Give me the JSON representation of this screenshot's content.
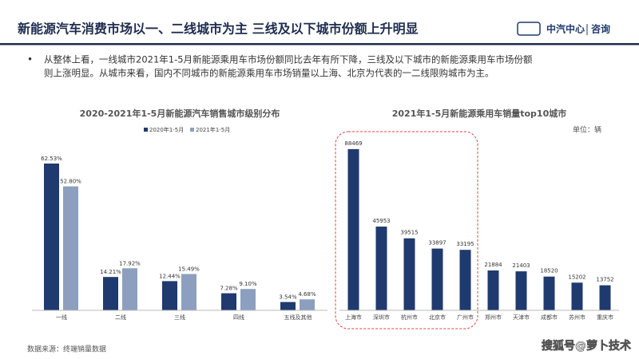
{
  "header": {
    "title": "新能源汽车消费市场以一、二线城市为主 三线及以下城市份额上升明显",
    "logo": "中汽中心",
    "logo_sub": "咨询"
  },
  "bullet": [
    "从整体上看，一线城市2021年1-5月新能源乘用车市场份额同比去年有所下降，三线及以下城市的新能源乘用车市场份额",
    "则上涨明显。从城市来看，国内不同城市的新能源乘用车市场销量以上海、北京为代表的一二线限购城市为主。"
  ],
  "source": "数据来源：终端销量数据",
  "watermark": "搜狐号@萝卜技术",
  "chart_data": [
    {
      "type": "grouped_bar",
      "title": "2020-2021年1-5月新能源汽车销售城市级别分布",
      "categories": [
        "一线",
        "二线",
        "三线",
        "四线",
        "五线及其他"
      ],
      "series": [
        {
          "name": "2020年1-5月",
          "color": "#1f3a6e",
          "values": [
            62.53,
            14.21,
            12.44,
            7.28,
            3.54
          ],
          "value_labels": [
            "62.53%",
            "14.21%",
            "12.44%",
            "7.28%",
            "3.54%"
          ]
        },
        {
          "name": "2021年1-5月",
          "color": "#8c9fbf",
          "values": [
            52.8,
            17.92,
            15.49,
            9.1,
            4.68
          ],
          "value_labels": [
            "52.80%",
            "17.92%",
            "15.49%",
            "9.10%",
            "4.68%"
          ]
        }
      ],
      "ylim": [
        0,
        70
      ]
    },
    {
      "type": "bar",
      "title": "2021年1-5月新能源乘用车销量top10城市",
      "unit": "单位：辆",
      "categories": [
        "上海市",
        "深圳市",
        "杭州市",
        "北京市",
        "广州市",
        "郑州市",
        "天津市",
        "成都市",
        "苏州市",
        "重庆市"
      ],
      "values": [
        88469,
        45953,
        39515,
        33897,
        33195,
        21884,
        21403,
        18520,
        15202,
        13752
      ],
      "color": "#1f3a6e",
      "ylim": [
        0,
        95000
      ]
    }
  ]
}
